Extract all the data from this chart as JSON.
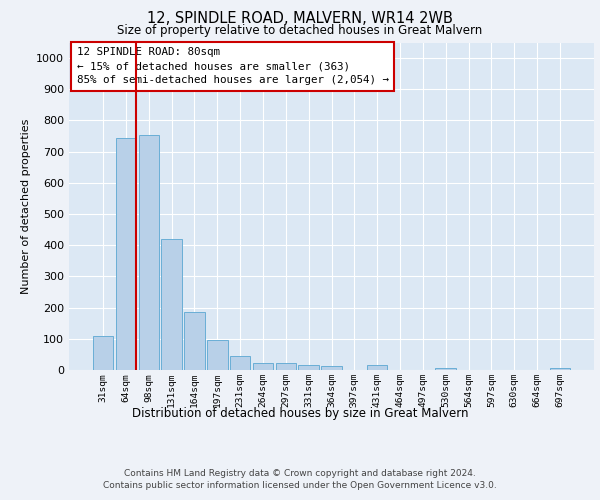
{
  "title": "12, SPINDLE ROAD, MALVERN, WR14 2WB",
  "subtitle": "Size of property relative to detached houses in Great Malvern",
  "xlabel": "Distribution of detached houses by size in Great Malvern",
  "ylabel": "Number of detached properties",
  "categories": [
    "31sqm",
    "64sqm",
    "98sqm",
    "131sqm",
    "164sqm",
    "197sqm",
    "231sqm",
    "264sqm",
    "297sqm",
    "331sqm",
    "364sqm",
    "397sqm",
    "431sqm",
    "464sqm",
    "497sqm",
    "530sqm",
    "564sqm",
    "597sqm",
    "630sqm",
    "664sqm",
    "697sqm"
  ],
  "values": [
    110,
    745,
    755,
    420,
    185,
    97,
    44,
    22,
    22,
    15,
    14,
    0,
    15,
    0,
    0,
    8,
    0,
    0,
    0,
    0,
    8
  ],
  "bar_color": "#b8d0e8",
  "bar_edge_color": "#6aaed6",
  "vline_color": "#cc0000",
  "vline_x": 1.42,
  "annotation_text": "12 SPINDLE ROAD: 80sqm\n← 15% of detached houses are smaller (363)\n85% of semi-detached houses are larger (2,054) →",
  "annotation_box_color": "#ffffff",
  "annotation_box_edge_color": "#cc0000",
  "ylim": [
    0,
    1050
  ],
  "yticks": [
    0,
    100,
    200,
    300,
    400,
    500,
    600,
    700,
    800,
    900,
    1000
  ],
  "footer1": "Contains HM Land Registry data © Crown copyright and database right 2024.",
  "footer2": "Contains public sector information licensed under the Open Government Licence v3.0.",
  "bg_color": "#eef2f8",
  "plot_bg_color": "#dce8f4"
}
